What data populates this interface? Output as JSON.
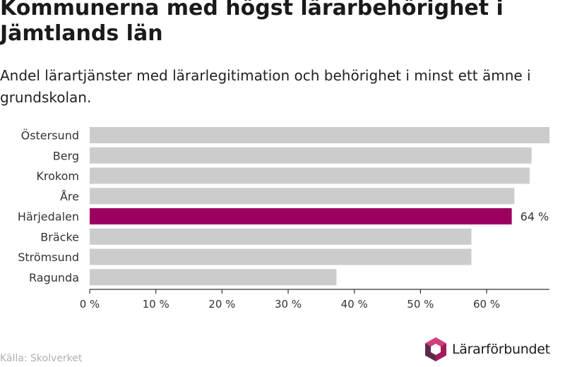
{
  "header": {
    "title": "Kommunerna med högst lärarbehörighet i Jämtlands län",
    "subtitle": "Andel lärartjänster med lärarlegitimation och behörighet i minst ett ämne i grundskolan."
  },
  "footer": {
    "source": "Källa: Skolverket",
    "logo_text": "Lärarförbundet"
  },
  "colors": {
    "bar_default": "#cccccc",
    "bar_highlight": "#9b0060",
    "axis": "#333333",
    "logo_magenta": "#a3195b",
    "logo_dark": "#5b2a4a"
  },
  "chart_data": {
    "type": "bar",
    "orientation": "horizontal",
    "categories": [
      "Östersund",
      "Berg",
      "Krokom",
      "Åre",
      "Härjedalen",
      "Bräcke",
      "Strömsund",
      "Ragunda"
    ],
    "values": [
      69.5,
      66.8,
      66.5,
      64.2,
      63.8,
      57.7,
      57.7,
      37.3
    ],
    "highlight_index": 4,
    "data_labels": [
      "",
      "",
      "",
      "",
      "64 %",
      "",
      "",
      ""
    ],
    "xlim": [
      0,
      69.5
    ],
    "xticks": [
      0,
      10,
      20,
      30,
      40,
      50,
      60
    ],
    "xtick_labels": [
      "0 %",
      "10 %",
      "20 %",
      "30 %",
      "40 %",
      "50 %",
      "60 %"
    ],
    "grid": false
  }
}
